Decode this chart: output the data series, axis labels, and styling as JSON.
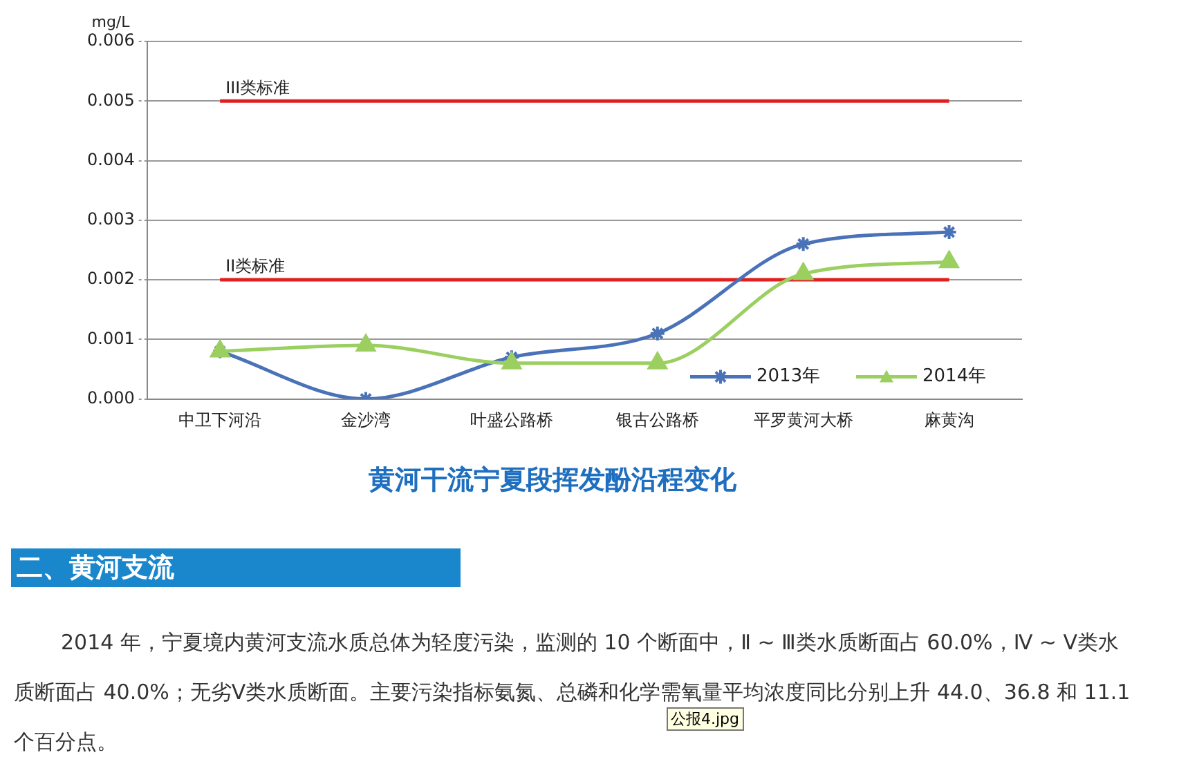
{
  "chart_data": {
    "type": "line",
    "title": "黄河干流宁夏段挥发酚沿程变化",
    "ylabel": "mg/L",
    "categories": [
      "中卫下河沿",
      "金沙湾",
      "叶盛公路桥",
      "银古公路桥",
      "平罗黄河大桥",
      "麻黄沟"
    ],
    "series": [
      {
        "name": "2013年",
        "color": "#4a72b8",
        "marker": "cross",
        "values": [
          0.0008,
          0.0,
          0.0007,
          0.0011,
          0.0026,
          0.0028
        ]
      },
      {
        "name": "2014年",
        "color": "#9bcf60",
        "marker": "triangle",
        "values": [
          0.0008,
          0.0009,
          0.0006,
          0.0006,
          0.0021,
          0.0023
        ]
      }
    ],
    "ylim": [
      0,
      0.006
    ],
    "yticks": [
      {
        "value": 0,
        "label": "0.000"
      },
      0.001,
      0.002,
      0.003,
      0.004,
      0.005,
      0.006
    ],
    "ref_lines": [
      {
        "axis": "y",
        "value": 0.005,
        "label": "III类标准",
        "color": "#e02020"
      },
      {
        "axis": "y",
        "value": 0.002,
        "label": "II类标准",
        "color": "#e02020"
      }
    ],
    "grid": "y",
    "legend": "bottom right",
    "line_style": "solid",
    "annotations": [
      "二、黄河支流",
      "2014 年，宁夏境内黄河支流水质总体为轻度污染，监测的 10 个断面中，Ⅱ ~ Ⅲ类水质断面占 60.0%，Ⅳ ~ Ⅴ类水质断面占 40.0%；无劣Ⅴ类水质断面。主要污染指标氨氮、总磷和化学需氧量平均浓度同比分别上升 44.0、36.8 和 11.1 个百分点。",
      "公报4.jpg"
    ]
  }
}
